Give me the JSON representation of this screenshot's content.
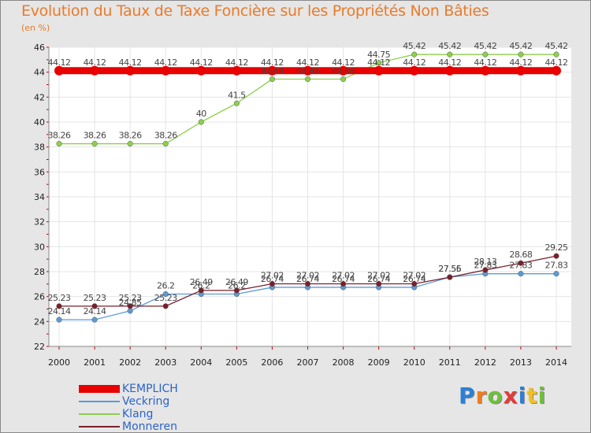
{
  "header": {
    "title": "Evolution du Taux de Taxe Foncière sur les Propriétés Non Bâties",
    "unit": "(en %)"
  },
  "logo": {
    "letters": [
      "P",
      "r",
      "o",
      "x",
      "i",
      "t",
      "i"
    ],
    "colors": [
      "#2b7fd6",
      "#f07c1c",
      "#6fbf3a",
      "#e23b3b",
      "#2b7fd6",
      "#f2c11d",
      "#6fbf3a"
    ]
  },
  "chart_data": {
    "type": "line",
    "title": "Evolution du Taux de Taxe Foncière sur les Propriétés Non Bâties",
    "ylabel": "(en %)",
    "xlabel": "",
    "ylim": [
      22,
      46
    ],
    "yticks": [
      22,
      24,
      26,
      28,
      30,
      32,
      34,
      36,
      38,
      40,
      42,
      44,
      46
    ],
    "x": [
      2000,
      2001,
      2002,
      2003,
      2004,
      2005,
      2006,
      2007,
      2008,
      2009,
      2010,
      2011,
      2012,
      2013,
      2014
    ],
    "grid": true,
    "series": [
      {
        "name": "KEMPLICH",
        "color": "#e80000",
        "values": [
          44.12,
          44.12,
          44.12,
          44.12,
          44.12,
          44.12,
          44.12,
          44.12,
          44.12,
          44.12,
          44.12,
          44.12,
          44.12,
          44.12,
          44.12
        ],
        "labels": [
          "44.12",
          "44.12",
          "44.12",
          "44.12",
          "44.12",
          "44.12",
          "44.12",
          "44.12",
          "44.12",
          "44.12",
          "44.12",
          "44.12",
          "44.12",
          "44.12",
          "44.12"
        ]
      },
      {
        "name": "Veckring",
        "color": "#5b9bd5",
        "values": [
          24.14,
          24.14,
          24.85,
          26.2,
          26.2,
          26.2,
          26.74,
          26.74,
          26.74,
          26.74,
          26.74,
          27.56,
          27.83,
          27.83,
          27.83
        ],
        "labels": [
          "24.14",
          "24.14",
          "24.85",
          "26.2",
          "26.2",
          "26.2",
          "26.74",
          "26.74",
          "26.74",
          "26.74",
          "26.74",
          "27.56",
          "27.83",
          "27.83",
          "27.83"
        ]
      },
      {
        "name": "Klang",
        "color": "#8cd04b",
        "values": [
          38.26,
          38.26,
          38.26,
          38.26,
          40,
          41.5,
          43.44,
          43.44,
          43.44,
          44.75,
          45.42,
          45.42,
          45.42,
          45.42,
          45.42
        ],
        "labels": [
          "38.26",
          "38.26",
          "38.26",
          "38.26",
          "40",
          "41.5",
          "43.44",
          "43.44",
          "43.44",
          "44.75",
          "45.42",
          "45.42",
          "45.42",
          "45.42",
          "45.42"
        ]
      },
      {
        "name": "Monneren",
        "color": "#7a1f2b",
        "values": [
          25.23,
          25.23,
          25.23,
          25.23,
          26.49,
          26.49,
          27.02,
          27.02,
          27.02,
          27.02,
          27.02,
          27.55,
          28.13,
          28.68,
          29.25
        ],
        "labels": [
          "25.23",
          "25.23",
          "25.23",
          "25.23",
          "26.49",
          "26.49",
          "27.02",
          "27.02",
          "27.02",
          "27.02",
          "27.02",
          "27.55",
          "28.13",
          "28.68",
          "29.25"
        ]
      }
    ]
  }
}
